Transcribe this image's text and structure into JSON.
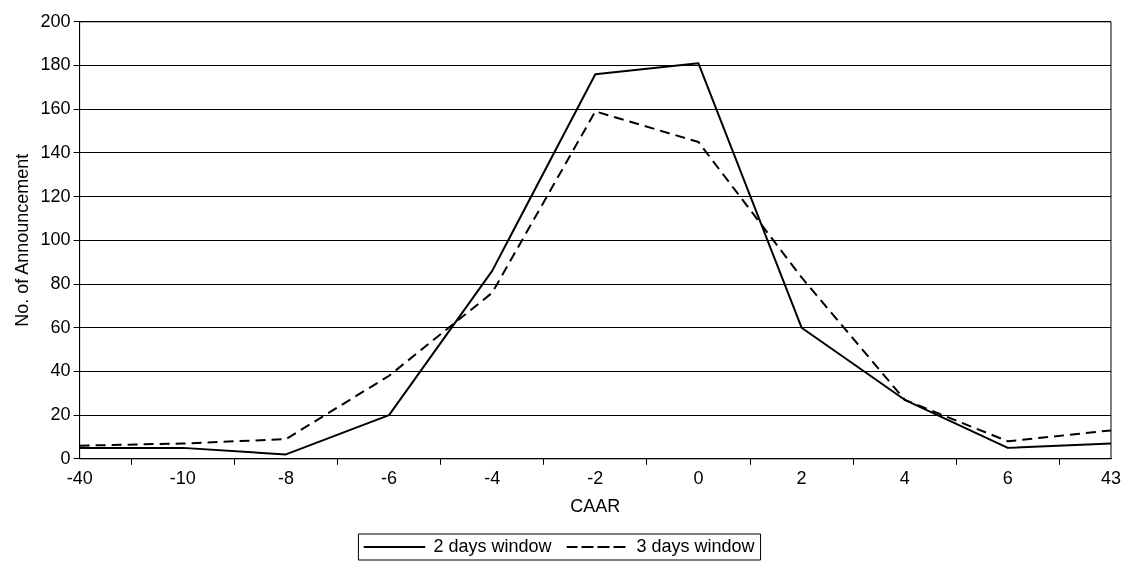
{
  "chart_data": {
    "type": "line",
    "xlabel": "CAAR",
    "ylabel": "No. of Announcement",
    "categories": [
      "-40",
      "-10",
      "-8",
      "-6",
      "-4",
      "-2",
      "0",
      "2",
      "4",
      "6",
      "43"
    ],
    "series": [
      {
        "name": "2 days window",
        "color": "#000000",
        "line_style": "solid",
        "values": [
          5,
          5,
          2,
          20,
          86,
          176,
          181,
          60,
          27,
          5,
          7
        ]
      },
      {
        "name": "3 days window",
        "color": "#000000",
        "line_style": "dashed",
        "values": [
          6,
          7,
          9,
          38,
          76,
          159,
          145,
          83,
          27,
          8,
          13
        ]
      }
    ],
    "ylim": [
      0,
      200
    ],
    "yticks": [
      0,
      20,
      40,
      60,
      80,
      100,
      120,
      140,
      160,
      180,
      200
    ],
    "grid": "y",
    "legend": "bottom",
    "marker": "none"
  }
}
